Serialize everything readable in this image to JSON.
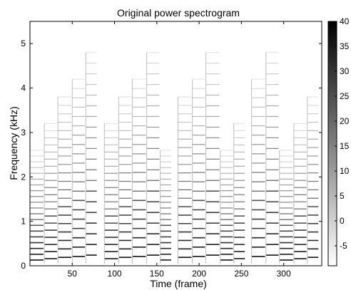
{
  "chart_data": {
    "type": "heatmap",
    "title": "Original power spectrogram",
    "xlabel": "Time (frame)",
    "ylabel": "Frequency (kHz)",
    "xlim": [
      0,
      345
    ],
    "ylim": [
      0,
      5.5
    ],
    "x_ticks": [
      50,
      100,
      150,
      200,
      250,
      300
    ],
    "y_ticks": [
      0,
      1,
      2,
      3,
      4,
      5
    ],
    "colorbar": {
      "colormap": "gray-reversed",
      "range": [
        -9,
        40
      ],
      "ticks": [
        -5,
        0,
        5,
        10,
        15,
        20,
        25,
        30,
        35,
        40
      ],
      "color_low": "#ffffff",
      "color_high": "#000000"
    },
    "pattern": {
      "description_visible": "harmonic note events repeated in four similar phrases",
      "phrase_starts": [
        0,
        88,
        175,
        262
      ],
      "phrase_length": 80,
      "note_onsets_in_phrase": [
        0,
        17,
        33,
        50,
        66
      ],
      "note_f0_khz": [
        0.13,
        0.16,
        0.19,
        0.21,
        0.24
      ],
      "harmonic_count": 20
    }
  }
}
